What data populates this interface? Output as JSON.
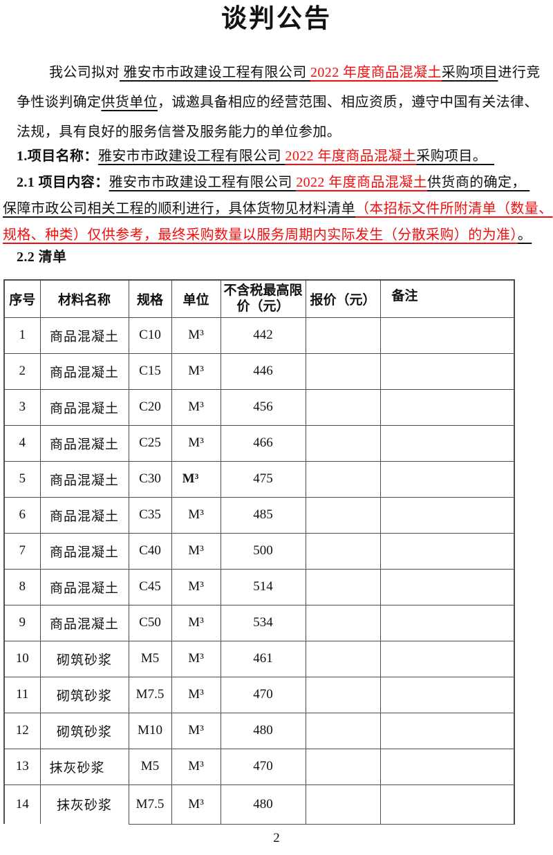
{
  "colors": {
    "red": "#f20d0d",
    "text": "#111111",
    "table_border": "#4d4d4d"
  },
  "title": "谈判公告",
  "intro_lines": [
    [
      {
        "t": "我公司拟对"
      },
      {
        "t": " 雅安市市政建设工程有限公司 ",
        "u": true
      },
      {
        "t": "2022 年度商品混凝土",
        "u": true,
        "red": true
      },
      {
        "t": "采购项目",
        "u": true
      },
      {
        "t": "进行竞"
      }
    ],
    [
      {
        "t": "争性谈判确定"
      },
      {
        "t": "供货单位",
        "u": true
      },
      {
        "t": "，诚邀具备相应的经营范围、相应资质，遵守中国有关法律、"
      }
    ],
    [
      {
        "t": "法规，具有良好的服务信誉及服务能力的单位参加。"
      }
    ]
  ],
  "section1_lines": [
    [
      {
        "t": "1.项目名称：",
        "b": true
      },
      {
        "t": "雅安市市政建设工程有限公司 ",
        "u": true
      },
      {
        "t": "2022 年度商品混凝土",
        "u": true,
        "red": true
      },
      {
        "t": "采购项目。  ",
        "u": true
      }
    ]
  ],
  "section21_lines": [
    [
      {
        "t": "2.1 项目内容：",
        "b": true
      },
      {
        "t": "雅安市市政建设工程有限公司 ",
        "u": true
      },
      {
        "t": "2022 年度商品混凝土",
        "u": true,
        "red": true
      },
      {
        "t": "供货商的确定， ",
        "u": true
      }
    ],
    [
      {
        "t": "保障市政公司相关工程的顺利进行，具体货物见材料清单",
        "u": true
      },
      {
        "t": "（本招标文件所附清单（数量、",
        "u": true,
        "red": true
      }
    ],
    [
      {
        "t": "规格、种类）仅供参考，最终采购数量以服务周期内实际发生（分散采购）的为准）",
        "u": true,
        "red": true
      },
      {
        "t": "。",
        "u": true
      }
    ]
  ],
  "section22_lines": [
    [
      {
        "t": "2.2 清单",
        "b": true
      }
    ]
  ],
  "table": {
    "headers": [
      "序号",
      "材料名称",
      "规格",
      "单位",
      "不含税最高限价（元）",
      "报价（元）",
      "备注"
    ],
    "rows": [
      {
        "no": "1",
        "name": "商品混凝土",
        "spec": "C10",
        "unit": "M³",
        "price": "442",
        "quote": "",
        "note": ""
      },
      {
        "no": "2",
        "name": "商品混凝土",
        "spec": "C15",
        "unit": "M³",
        "price": "446",
        "quote": "",
        "note": ""
      },
      {
        "no": "3",
        "name": "商品混凝土",
        "spec": "C20",
        "unit": "M³",
        "price": "456",
        "quote": "",
        "note": ""
      },
      {
        "no": "4",
        "name": "商品混凝土",
        "spec": "C25",
        "unit": "M³",
        "price": "466",
        "quote": "",
        "note": ""
      },
      {
        "no": "5",
        "name": "商品混凝土",
        "spec": "C30",
        "unit": "M³",
        "price": "475",
        "quote": "",
        "note": ""
      },
      {
        "no": "6",
        "name": "商品混凝土",
        "spec": "C35",
        "unit": "M³",
        "price": "485",
        "quote": "",
        "note": ""
      },
      {
        "no": "7",
        "name": "商品混凝土",
        "spec": "C40",
        "unit": "M³",
        "price": "500",
        "quote": "",
        "note": ""
      },
      {
        "no": "8",
        "name": "商品混凝土",
        "spec": "C45",
        "unit": "M³",
        "price": "514",
        "quote": "",
        "note": ""
      },
      {
        "no": "9",
        "name": "商品混凝土",
        "spec": "C50",
        "unit": "M³",
        "price": "534",
        "quote": "",
        "note": ""
      },
      {
        "no": "10",
        "name": "砌筑砂浆",
        "spec": "M5",
        "unit": "M³",
        "price": "461",
        "quote": "",
        "note": ""
      },
      {
        "no": "11",
        "name": "砌筑砂浆",
        "spec": "M7.5",
        "unit": "M³",
        "price": "470",
        "quote": "",
        "note": ""
      },
      {
        "no": "12",
        "name": "砌筑砂浆",
        "spec": "M10",
        "unit": "M³",
        "price": "480",
        "quote": "",
        "note": ""
      },
      {
        "no": "13",
        "name": "抹灰砂浆",
        "spec": "M5",
        "unit": "M³",
        "price": "470",
        "quote": "",
        "note": ""
      },
      {
        "no": "14",
        "name": "抹灰砂浆",
        "spec": "M7.5",
        "unit": "M³",
        "price": "480",
        "quote": "",
        "note": ""
      }
    ]
  },
  "page": {
    "number": "2"
  }
}
